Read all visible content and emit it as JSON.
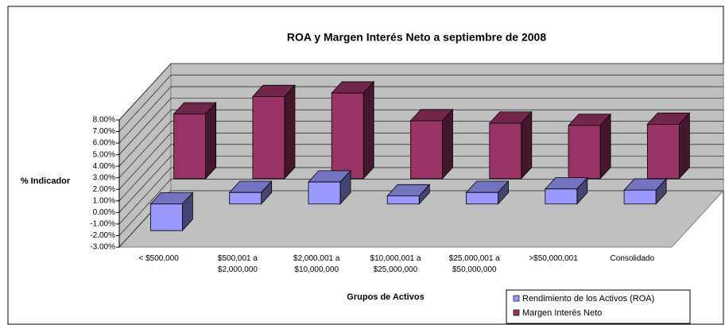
{
  "chart_data": {
    "type": "bar3d",
    "title": "ROA y Margen Interés Neto a septiembre de 2008",
    "y_label": "% Indicador",
    "x_label": "Grupos de Activos",
    "categories": [
      "< $500,000",
      "$500,001 a\n$2,000,000",
      "$2,000,001 a\n$10,000,000",
      "$10,000,001 a\n$25,000,000",
      "$25,000,001 a\n$50,000,000",
      ">$50,000,001",
      "Consolidado"
    ],
    "series": [
      {
        "name": "Rendimiento de los Activos (ROA)",
        "color": "#9999ff",
        "values": [
          -2.3,
          1.0,
          1.9,
          0.7,
          1.0,
          1.3,
          1.2
        ]
      },
      {
        "name": "Margen Interés Neto",
        "color": "#993366",
        "values": [
          5.6,
          7.1,
          7.4,
          5.0,
          4.8,
          4.6,
          4.7
        ]
      }
    ],
    "ylim": [
      -3,
      8
    ],
    "yticks": [
      {
        "value": -3,
        "label": "-3.00%"
      },
      {
        "value": -2,
        "label": "-2.00%"
      },
      {
        "value": -1,
        "label": "-1.00%"
      },
      {
        "value": 0,
        "label": "0.00%"
      },
      {
        "value": 1,
        "label": "1.00%"
      },
      {
        "value": 2,
        "label": "2.00%"
      },
      {
        "value": 3,
        "label": "3.00%"
      },
      {
        "value": 4,
        "label": "4.00%"
      },
      {
        "value": 5,
        "label": "5.00%"
      },
      {
        "value": 6,
        "label": "6.00%"
      },
      {
        "value": 7,
        "label": "7.00%"
      },
      {
        "value": 8,
        "label": "8.00%"
      }
    ],
    "grid": true,
    "legend": "bottom-right"
  }
}
